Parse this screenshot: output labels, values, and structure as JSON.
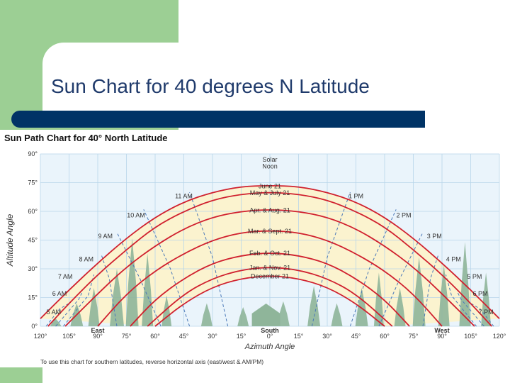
{
  "slide": {
    "title": "Sun Chart for 40 degrees N Latitude"
  },
  "chart_data": {
    "type": "line",
    "title": "Sun Path Chart for 40° North Latitude",
    "xlabel": "Azimuth Angle",
    "ylabel": "Altitude Angle",
    "xlim": [
      -120,
      120
    ],
    "ylim": [
      0,
      90
    ],
    "x_ticks": [
      "120°",
      "105°",
      "90°",
      "75°",
      "60°",
      "45°",
      "30°",
      "15°",
      "0°",
      "15°",
      "30°",
      "45°",
      "60°",
      "75°",
      "90°",
      "105°",
      "120°"
    ],
    "x_tick_values": [
      -120,
      -105,
      -90,
      -75,
      -60,
      -45,
      -30,
      -15,
      0,
      15,
      30,
      45,
      60,
      75,
      90,
      105,
      120
    ],
    "x_direction_labels": [
      {
        "text": "East",
        "x": -90
      },
      {
        "text": "South",
        "x": 0
      },
      {
        "text": "West",
        "x": 90
      }
    ],
    "y_ticks": [
      "0°",
      "15°",
      "30°",
      "45°",
      "60°",
      "75°",
      "90°"
    ],
    "y_tick_values": [
      0,
      15,
      30,
      45,
      60,
      75,
      90
    ],
    "grid": true,
    "solar_noon_label": "Solar Noon",
    "day_labels": [
      {
        "text": "June 21",
        "alt": 73.5
      },
      {
        "text": "May & July 21",
        "alt": 70
      },
      {
        "text": "Apr. & Aug. 21",
        "alt": 61
      },
      {
        "text": "Mar. & Sept. 21",
        "alt": 50
      },
      {
        "text": "Feb. & Oct. 21",
        "alt": 38.5
      },
      {
        "text": "Jan. & Nov. 21",
        "alt": 31
      },
      {
        "text": "December 21",
        "alt": 26.5
      }
    ],
    "series": [
      {
        "values": [
          [
            -120,
            4
          ],
          [
            -105,
            19
          ],
          [
            -90,
            33
          ],
          [
            -75,
            46
          ],
          [
            -60,
            57
          ],
          [
            -45,
            65
          ],
          [
            -30,
            70
          ],
          [
            -15,
            73
          ],
          [
            0,
            73.5
          ],
          [
            15,
            73
          ],
          [
            30,
            70
          ],
          [
            45,
            65
          ],
          [
            60,
            57
          ],
          [
            75,
            46
          ],
          [
            90,
            33
          ],
          [
            105,
            19
          ],
          [
            120,
            4
          ]
        ]
      },
      {
        "values": [
          [
            -116,
            0
          ],
          [
            -105,
            12
          ],
          [
            -90,
            27
          ],
          [
            -75,
            40
          ],
          [
            -60,
            52
          ],
          [
            -45,
            60
          ],
          [
            -30,
            66
          ],
          [
            -15,
            69
          ],
          [
            0,
            70
          ],
          [
            15,
            69
          ],
          [
            30,
            66
          ],
          [
            45,
            60
          ],
          [
            60,
            52
          ],
          [
            75,
            40
          ],
          [
            90,
            27
          ],
          [
            105,
            12
          ],
          [
            116,
            0
          ]
        ]
      },
      {
        "values": [
          [
            -107,
            0
          ],
          [
            -90,
            17
          ],
          [
            -75,
            31
          ],
          [
            -60,
            42
          ],
          [
            -45,
            51
          ],
          [
            -30,
            57
          ],
          [
            -15,
            60
          ],
          [
            0,
            61
          ],
          [
            15,
            60
          ],
          [
            30,
            57
          ],
          [
            45,
            51
          ],
          [
            60,
            42
          ],
          [
            75,
            31
          ],
          [
            90,
            17
          ],
          [
            107,
            0
          ]
        ]
      },
      {
        "values": [
          [
            -90,
            0
          ],
          [
            -75,
            17
          ],
          [
            -60,
            29
          ],
          [
            -45,
            38
          ],
          [
            -30,
            45
          ],
          [
            -15,
            49
          ],
          [
            0,
            50
          ],
          [
            15,
            49
          ],
          [
            30,
            45
          ],
          [
            45,
            38
          ],
          [
            60,
            29
          ],
          [
            75,
            17
          ],
          [
            90,
            0
          ]
        ]
      },
      {
        "values": [
          [
            -73,
            0
          ],
          [
            -60,
            14
          ],
          [
            -45,
            25
          ],
          [
            -30,
            33
          ],
          [
            -15,
            37
          ],
          [
            0,
            38.5
          ],
          [
            15,
            37
          ],
          [
            30,
            33
          ],
          [
            45,
            25
          ],
          [
            60,
            14
          ],
          [
            73,
            0
          ]
        ]
      },
      {
        "values": [
          [
            -64,
            0
          ],
          [
            -45,
            17
          ],
          [
            -30,
            25
          ],
          [
            -15,
            29.5
          ],
          [
            0,
            31
          ],
          [
            15,
            29.5
          ],
          [
            30,
            25
          ],
          [
            45,
            17
          ],
          [
            64,
            0
          ]
        ]
      },
      {
        "values": [
          [
            -60,
            0
          ],
          [
            -45,
            12
          ],
          [
            -30,
            20.5
          ],
          [
            -15,
            25
          ],
          [
            0,
            26.5
          ],
          [
            15,
            25
          ],
          [
            30,
            20.5
          ],
          [
            45,
            12
          ],
          [
            60,
            0
          ]
        ]
      }
    ],
    "hour_lines": [
      {
        "label": "5 AM",
        "side": "left",
        "points": [
          [
            -117,
            0
          ],
          [
            -110,
            9
          ],
          [
            -105,
            12
          ]
        ]
      },
      {
        "label": "6 AM",
        "side": "left",
        "points": [
          [
            -112,
            0
          ],
          [
            -100,
            14
          ],
          [
            -98,
            18
          ]
        ]
      },
      {
        "label": "7 AM",
        "side": "left",
        "points": [
          [
            -108,
            0
          ],
          [
            -95,
            16
          ],
          [
            -92,
            27
          ]
        ]
      },
      {
        "label": "8 AM",
        "side": "left",
        "points": [
          [
            -80,
            0
          ],
          [
            -84,
            25
          ],
          [
            -88,
            37
          ]
        ]
      },
      {
        "label": "9 AM",
        "side": "left",
        "points": [
          [
            -57,
            0
          ],
          [
            -68,
            25
          ],
          [
            -80,
            49
          ]
        ]
      },
      {
        "label": "10 AM",
        "side": "left",
        "points": [
          [
            -42,
            0
          ],
          [
            -52,
            30
          ],
          [
            -66,
            61
          ]
        ]
      },
      {
        "label": "11 AM",
        "side": "left",
        "points": [
          [
            -22,
            0
          ],
          [
            -30,
            36
          ],
          [
            -42,
            70
          ]
        ]
      },
      {
        "label": "1 PM",
        "side": "right",
        "points": [
          [
            22,
            0
          ],
          [
            30,
            36
          ],
          [
            42,
            70
          ]
        ]
      },
      {
        "label": "2 PM",
        "side": "right",
        "points": [
          [
            42,
            0
          ],
          [
            52,
            30
          ],
          [
            66,
            61
          ]
        ]
      },
      {
        "label": "3 PM",
        "side": "right",
        "points": [
          [
            57,
            0
          ],
          [
            68,
            25
          ],
          [
            80,
            49
          ]
        ]
      },
      {
        "label": "4 PM",
        "side": "right",
        "points": [
          [
            80,
            0
          ],
          [
            84,
            25
          ],
          [
            88,
            37
          ]
        ]
      },
      {
        "label": "5 PM",
        "side": "right",
        "points": [
          [
            108,
            0
          ],
          [
            95,
            16
          ],
          [
            92,
            27
          ]
        ]
      },
      {
        "label": "6 PM",
        "side": "right",
        "points": [
          [
            112,
            0
          ],
          [
            100,
            14
          ],
          [
            98,
            18
          ]
        ]
      },
      {
        "label": "7 PM",
        "side": "right",
        "points": [
          [
            117,
            0
          ],
          [
            110,
            9
          ],
          [
            105,
            12
          ]
        ]
      }
    ],
    "hour_label_positions": [
      {
        "label": "5 AM",
        "x": -113,
        "alt": 7.5
      },
      {
        "label": "6 AM",
        "x": -110,
        "alt": 17
      },
      {
        "label": "7 AM",
        "x": -107,
        "alt": 26
      },
      {
        "label": "8 AM",
        "x": -96,
        "alt": 35
      },
      {
        "label": "9 AM",
        "x": -86,
        "alt": 47
      },
      {
        "label": "10 AM",
        "x": -70,
        "alt": 58
      },
      {
        "label": "11 AM",
        "x": -45,
        "alt": 68
      },
      {
        "label": "1 PM",
        "x": 45,
        "alt": 68
      },
      {
        "label": "2 PM",
        "x": 70,
        "alt": 58
      },
      {
        "label": "3 PM",
        "x": 86,
        "alt": 47
      },
      {
        "label": "4 PM",
        "x": 96,
        "alt": 35
      },
      {
        "label": "5 PM",
        "x": 107,
        "alt": 26
      },
      {
        "label": "6 PM",
        "x": 110,
        "alt": 17
      },
      {
        "label": "7 PM",
        "x": 113,
        "alt": 7.5
      }
    ],
    "footnote": "To use this chart for southern latitudes, reverse horizontal axis (east/west & AM/PM)",
    "colors": {
      "sun_path": "#d0202e",
      "hour_line": "#4a78b8",
      "grid": "#b7d5ea",
      "plot_bg": "#eaf4fb",
      "band_fill": "#fbf3cf",
      "trees": "#8fb59a"
    }
  }
}
